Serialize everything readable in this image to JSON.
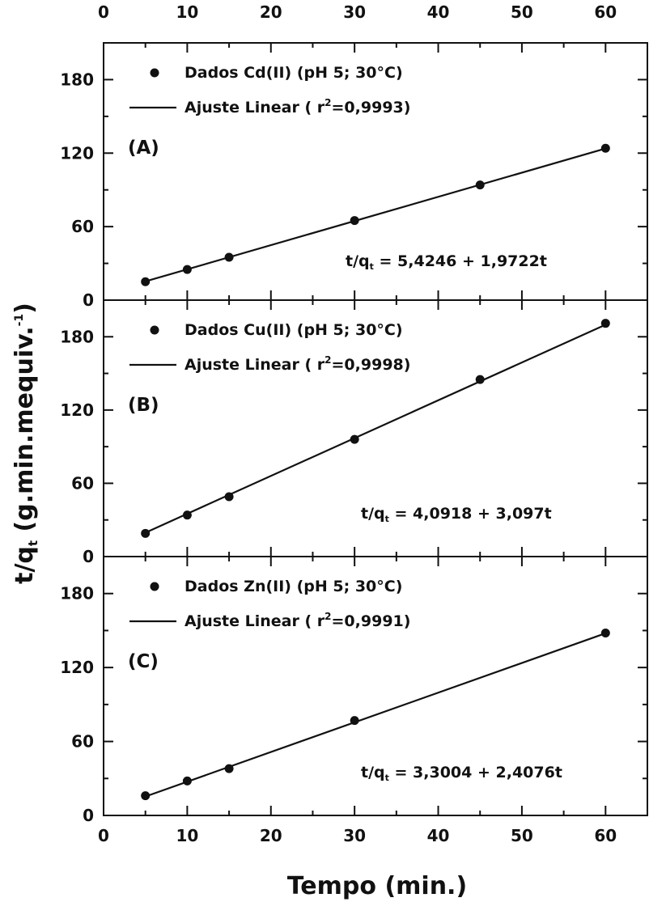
{
  "chart_data": {
    "type": "scatter",
    "xlabel": "Tempo (min.)",
    "ylabel_main": "t/q",
    "ylabel_sub": "t",
    "ylabel_units": " (g.min.mequiv.",
    "ylabel_sup": "-1",
    "ylabel_close": ")",
    "xlim": [
      0,
      65
    ],
    "x_ticks": [
      0,
      10,
      20,
      30,
      40,
      50,
      60
    ],
    "x_tick_labels": [
      "0",
      "10",
      "20",
      "30",
      "40",
      "50",
      "60"
    ],
    "ylim": [
      0,
      210
    ],
    "y_ticks": [
      0,
      60,
      120,
      180
    ],
    "y_tick_labels": [
      "0",
      "60",
      "120",
      "180"
    ],
    "panels": [
      {
        "label": "(A)",
        "legend_points": "Dados Cd(II) (pH 5; 30°C)",
        "legend_line_prefix": "Ajuste Linear ( r",
        "legend_line_sup": "2",
        "legend_line_suffix": "=0,9993)",
        "equation_prefix": "t/q",
        "equation_sub": "t",
        "equation_suffix": " = 5,4246 + 1,9722t",
        "intercept": 5.4246,
        "slope": 1.9722,
        "points": [
          {
            "x": 5,
            "y": 15
          },
          {
            "x": 10,
            "y": 25
          },
          {
            "x": 15,
            "y": 35
          },
          {
            "x": 30,
            "y": 65
          },
          {
            "x": 45,
            "y": 94
          },
          {
            "x": 60,
            "y": 124
          }
        ]
      },
      {
        "label": "(B)",
        "legend_points": "Dados Cu(II) (pH 5; 30°C)",
        "legend_line_prefix": "Ajuste Linear ( r",
        "legend_line_sup": "2",
        "legend_line_suffix": "=0,9998)",
        "equation_prefix": "t/q",
        "equation_sub": "t",
        "equation_suffix": " = 4,0918 + 3,097t",
        "intercept": 4.0918,
        "slope": 3.097,
        "points": [
          {
            "x": 5,
            "y": 19
          },
          {
            "x": 10,
            "y": 34
          },
          {
            "x": 15,
            "y": 49
          },
          {
            "x": 30,
            "y": 96
          },
          {
            "x": 45,
            "y": 145
          },
          {
            "x": 60,
            "y": 191
          }
        ]
      },
      {
        "label": "(C)",
        "legend_points": "Dados Zn(II) (pH 5; 30°C)",
        "legend_line_prefix": "Ajuste Linear ( r",
        "legend_line_sup": "2",
        "legend_line_suffix": "=0,9991)",
        "equation_prefix": "t/q",
        "equation_sub": "t",
        "equation_suffix": " = 3,3004 + 2,4076t",
        "intercept": 3.3004,
        "slope": 2.4076,
        "points": [
          {
            "x": 5,
            "y": 16
          },
          {
            "x": 10,
            "y": 28
          },
          {
            "x": 15,
            "y": 38
          },
          {
            "x": 30,
            "y": 77
          },
          {
            "x": 60,
            "y": 148
          }
        ]
      }
    ]
  }
}
